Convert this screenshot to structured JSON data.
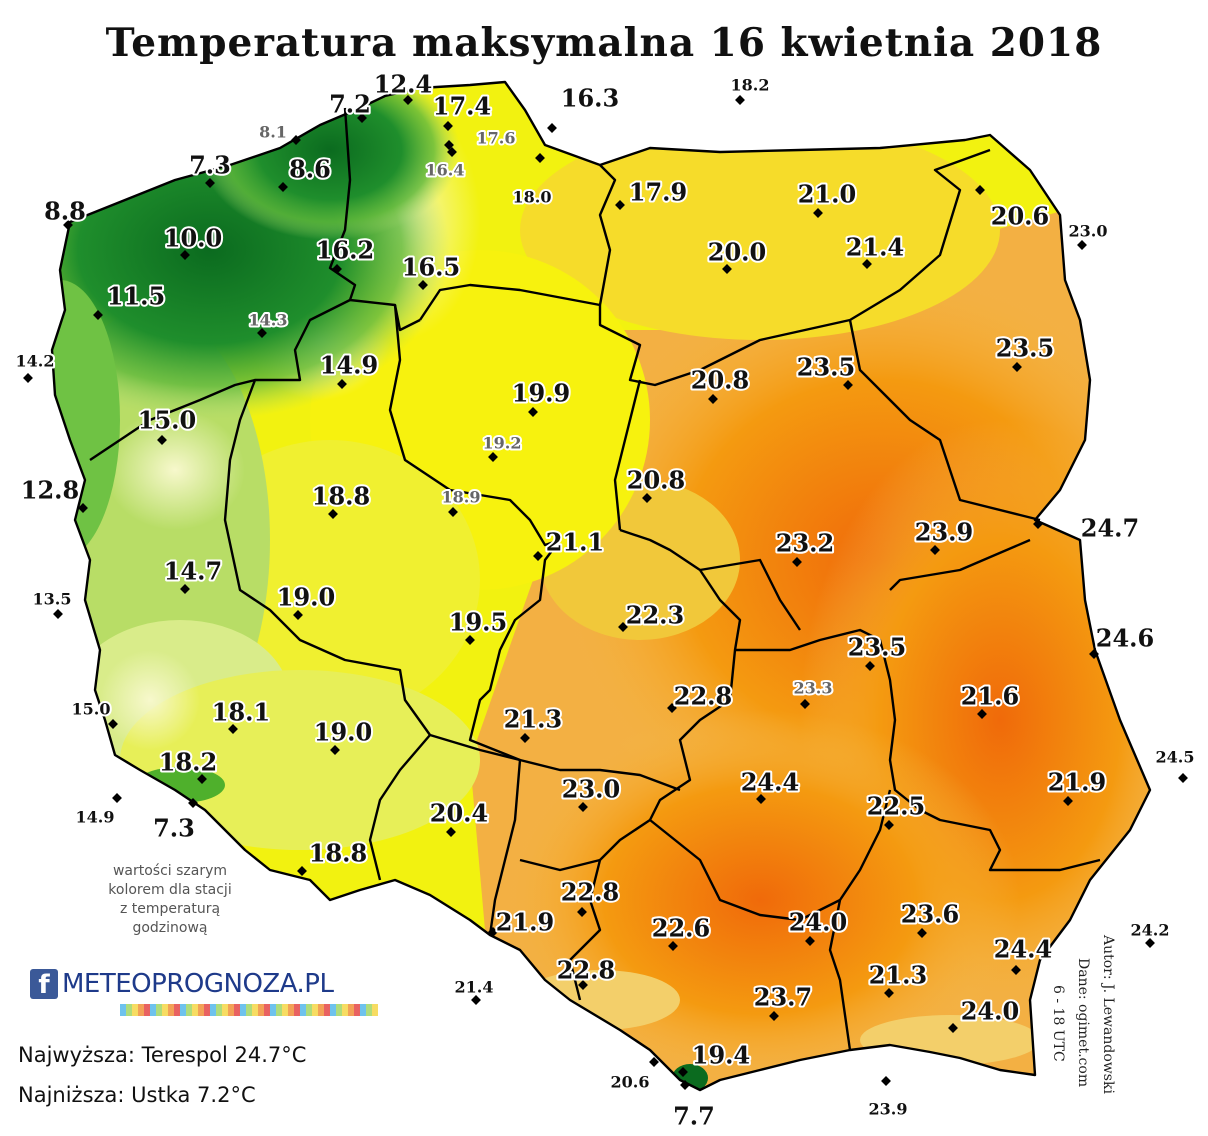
{
  "title": "Temperatura maksymalna 16 kwietnia 2018",
  "note": [
    "wartości szarym",
    "kolorem dla stacji",
    "z temperaturą",
    "godzinową"
  ],
  "stats": {
    "highest": "Najwyższa: Terespol 24.7°C",
    "lowest": "Najniższa: Ustka 7.2°C"
  },
  "credits": {
    "author": "Autor: J. Lewandowski",
    "source": "Dane: ogimet.com",
    "hours": "6 - 18 UTC"
  },
  "logo": {
    "icon": "f",
    "text": "METEOPROGNOZA.PL"
  },
  "colors": {
    "coldest": "#0b6b1f",
    "cold": "#4fb02c",
    "mild": "#f3f7a3",
    "warm": "#f3f30a",
    "hot": "#f49a10",
    "hottest": "#f06a0a"
  },
  "stations": [
    {
      "value": "7.2",
      "gray": false,
      "size": "m"
    },
    {
      "value": "12.4",
      "gray": false,
      "size": "m"
    },
    {
      "value": "17.4",
      "gray": false,
      "size": "m"
    },
    {
      "value": "16.3",
      "gray": false,
      "size": "m"
    },
    {
      "value": "18.2",
      "gray": false,
      "size": "s"
    },
    {
      "value": "8.1",
      "gray": true,
      "size": "s"
    },
    {
      "value": "17.6",
      "gray": true,
      "size": "s"
    },
    {
      "value": "7.3",
      "gray": false,
      "size": "m"
    },
    {
      "value": "8.6",
      "gray": false,
      "size": "m"
    },
    {
      "value": "16.4",
      "gray": true,
      "size": "s"
    },
    {
      "value": "18.0",
      "gray": false,
      "size": "s"
    },
    {
      "value": "17.9",
      "gray": false,
      "size": "m"
    },
    {
      "value": "21.0",
      "gray": false,
      "size": "m"
    },
    {
      "value": "8.8",
      "gray": false,
      "size": "m"
    },
    {
      "value": "10.0",
      "gray": false,
      "size": "m"
    },
    {
      "value": "20.6",
      "gray": false,
      "size": "m"
    },
    {
      "value": "23.0",
      "gray": false,
      "size": "s"
    },
    {
      "value": "16.2",
      "gray": false,
      "size": "m"
    },
    {
      "value": "20.0",
      "gray": false,
      "size": "m"
    },
    {
      "value": "21.4",
      "gray": false,
      "size": "m"
    },
    {
      "value": "16.5",
      "gray": false,
      "size": "m"
    },
    {
      "value": "11.5",
      "gray": false,
      "size": "m"
    },
    {
      "value": "14.3",
      "gray": true,
      "size": "s"
    },
    {
      "value": "23.5",
      "gray": false,
      "size": "m"
    },
    {
      "value": "14.2",
      "gray": false,
      "size": "s"
    },
    {
      "value": "14.9",
      "gray": false,
      "size": "m"
    },
    {
      "value": "23.5",
      "gray": false,
      "size": "m"
    },
    {
      "value": "20.8",
      "gray": false,
      "size": "m"
    },
    {
      "value": "19.9",
      "gray": false,
      "size": "m"
    },
    {
      "value": "15.0",
      "gray": false,
      "size": "m"
    },
    {
      "value": "19.2",
      "gray": true,
      "size": "s"
    },
    {
      "value": "20.8",
      "gray": false,
      "size": "m"
    },
    {
      "value": "12.8",
      "gray": false,
      "size": "m"
    },
    {
      "value": "18.8",
      "gray": false,
      "size": "m"
    },
    {
      "value": "18.9",
      "gray": true,
      "size": "s"
    },
    {
      "value": "23.9",
      "gray": false,
      "size": "m"
    },
    {
      "value": "24.7",
      "gray": false,
      "size": "m"
    },
    {
      "value": "21.1",
      "gray": false,
      "size": "m"
    },
    {
      "value": "23.2",
      "gray": false,
      "size": "m"
    },
    {
      "value": "14.7",
      "gray": false,
      "size": "m"
    },
    {
      "value": "19.0",
      "gray": false,
      "size": "m"
    },
    {
      "value": "13.5",
      "gray": false,
      "size": "s"
    },
    {
      "value": "22.3",
      "gray": false,
      "size": "m"
    },
    {
      "value": "19.5",
      "gray": false,
      "size": "m"
    },
    {
      "value": "24.6",
      "gray": false,
      "size": "m"
    },
    {
      "value": "23.5",
      "gray": false,
      "size": "m"
    },
    {
      "value": "21.6",
      "gray": false,
      "size": "m"
    },
    {
      "value": "23.3",
      "gray": true,
      "size": "s"
    },
    {
      "value": "15.0",
      "gray": false,
      "size": "s"
    },
    {
      "value": "18.1",
      "gray": false,
      "size": "m"
    },
    {
      "value": "22.8",
      "gray": false,
      "size": "m"
    },
    {
      "value": "21.3",
      "gray": false,
      "size": "m"
    },
    {
      "value": "19.0",
      "gray": false,
      "size": "m"
    },
    {
      "value": "24.5",
      "gray": false,
      "size": "s"
    },
    {
      "value": "18.2",
      "gray": false,
      "size": "m"
    },
    {
      "value": "23.0",
      "gray": false,
      "size": "m"
    },
    {
      "value": "21.9",
      "gray": false,
      "size": "m"
    },
    {
      "value": "24.4",
      "gray": false,
      "size": "m"
    },
    {
      "value": "22.5",
      "gray": false,
      "size": "m"
    },
    {
      "value": "14.9",
      "gray": false,
      "size": "s"
    },
    {
      "value": "7.3",
      "gray": false,
      "size": "m"
    },
    {
      "value": "20.4",
      "gray": false,
      "size": "m"
    },
    {
      "value": "18.8",
      "gray": false,
      "size": "m"
    },
    {
      "value": "22.8",
      "gray": false,
      "size": "m"
    },
    {
      "value": "21.9",
      "gray": false,
      "size": "m"
    },
    {
      "value": "22.6",
      "gray": false,
      "size": "m"
    },
    {
      "value": "24.0",
      "gray": false,
      "size": "m"
    },
    {
      "value": "23.6",
      "gray": false,
      "size": "m"
    },
    {
      "value": "24.2",
      "gray": false,
      "size": "s"
    },
    {
      "value": "24.4",
      "gray": false,
      "size": "m"
    },
    {
      "value": "21.4",
      "gray": false,
      "size": "s"
    },
    {
      "value": "22.8",
      "gray": false,
      "size": "m"
    },
    {
      "value": "21.3",
      "gray": false,
      "size": "m"
    },
    {
      "value": "23.7",
      "gray": false,
      "size": "m"
    },
    {
      "value": "24.0",
      "gray": false,
      "size": "m"
    },
    {
      "value": "19.4",
      "gray": false,
      "size": "m"
    },
    {
      "value": "20.6",
      "gray": false,
      "size": "s"
    },
    {
      "value": "7.7",
      "gray": false,
      "size": "m"
    },
    {
      "value": "23.9",
      "gray": false,
      "size": "s"
    }
  ]
}
